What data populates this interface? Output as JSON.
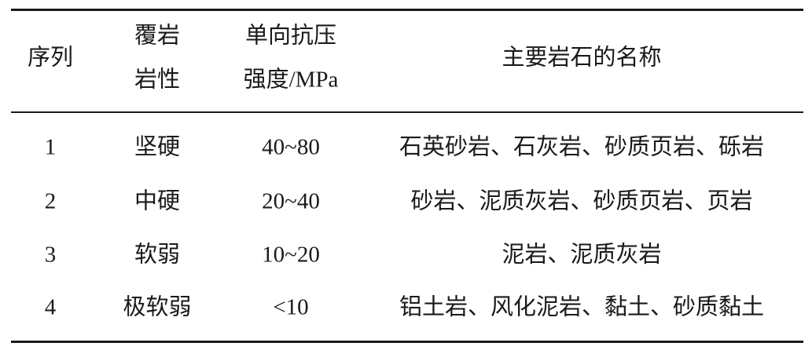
{
  "table": {
    "headers": [
      [
        "序列"
      ],
      [
        "覆岩",
        "岩性"
      ],
      [
        "单向抗压",
        "强度/MPa"
      ],
      [
        "主要岩石的名称"
      ]
    ],
    "rows": [
      [
        "1",
        "坚硬",
        "40~80",
        "石英砂岩、石灰岩、砂质页岩、砾岩"
      ],
      [
        "2",
        "中硬",
        "20~40",
        "砂岩、泥质灰岩、砂质页岩、页岩"
      ],
      [
        "3",
        "软弱",
        "10~20",
        "泥岩、泥质灰岩"
      ],
      [
        "4",
        "极软弱",
        "<10",
        "铝土岩、风化泥岩、黏土、砂质黏土"
      ]
    ]
  }
}
